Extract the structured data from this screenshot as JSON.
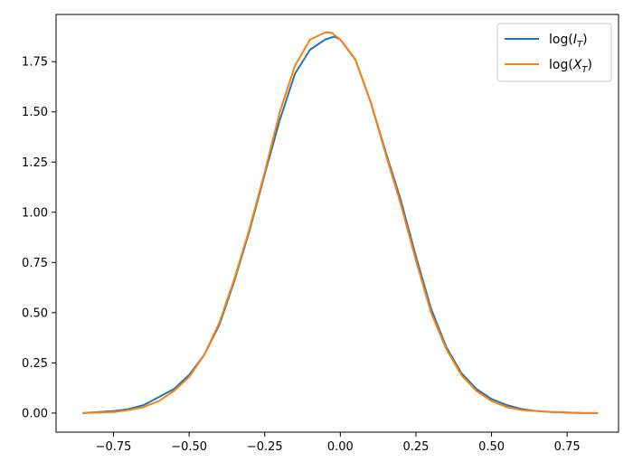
{
  "chart_data": {
    "type": "line",
    "title": "",
    "xlabel": "",
    "ylabel": "",
    "xlim": [
      -0.94,
      0.92
    ],
    "ylim": [
      -0.095,
      1.985
    ],
    "xticks": [
      -0.75,
      -0.5,
      -0.25,
      0.0,
      0.25,
      0.5,
      0.75
    ],
    "xtick_labels": [
      "−0.75",
      "−0.50",
      "−0.25",
      "0.00",
      "0.25",
      "0.50",
      "0.75"
    ],
    "yticks": [
      0.0,
      0.25,
      0.5,
      0.75,
      1.0,
      1.25,
      1.5,
      1.75
    ],
    "ytick_labels": [
      "0.00",
      "0.25",
      "0.50",
      "0.75",
      "1.00",
      "1.25",
      "1.50",
      "1.75"
    ],
    "grid": false,
    "legend_position": "top-right",
    "series": [
      {
        "name": "log(I_T)",
        "legend_main": "log(",
        "legend_sub_base": "I",
        "legend_sub": "T",
        "legend_close": ")",
        "color": "#1f77b4",
        "x": [
          -0.85,
          -0.75,
          -0.7,
          -0.65,
          -0.6,
          -0.55,
          -0.5,
          -0.45,
          -0.4,
          -0.35,
          -0.3,
          -0.25,
          -0.2,
          -0.15,
          -0.1,
          -0.05,
          -0.02,
          0.0,
          0.05,
          0.1,
          0.15,
          0.2,
          0.25,
          0.3,
          0.35,
          0.4,
          0.45,
          0.5,
          0.55,
          0.6,
          0.65,
          0.7,
          0.75,
          0.8,
          0.85
        ],
        "y": [
          0.0,
          0.01,
          0.02,
          0.04,
          0.08,
          0.12,
          0.19,
          0.29,
          0.44,
          0.66,
          0.91,
          1.19,
          1.46,
          1.69,
          1.81,
          1.86,
          1.875,
          1.86,
          1.76,
          1.55,
          1.3,
          1.06,
          0.78,
          0.52,
          0.33,
          0.2,
          0.12,
          0.07,
          0.04,
          0.02,
          0.01,
          0.005,
          0.003,
          0.0,
          0.0
        ]
      },
      {
        "name": "log(X_T)",
        "legend_main": "log(",
        "legend_sub_base": "X",
        "legend_sub": "T",
        "legend_close": ")",
        "color": "#ff7f0e",
        "x": [
          -0.85,
          -0.75,
          -0.7,
          -0.65,
          -0.6,
          -0.55,
          -0.5,
          -0.45,
          -0.4,
          -0.35,
          -0.3,
          -0.25,
          -0.2,
          -0.15,
          -0.1,
          -0.05,
          -0.03,
          0.0,
          0.05,
          0.1,
          0.15,
          0.2,
          0.25,
          0.3,
          0.35,
          0.4,
          0.45,
          0.5,
          0.55,
          0.6,
          0.65,
          0.7,
          0.75,
          0.8,
          0.85
        ],
        "y": [
          0.0,
          0.005,
          0.015,
          0.03,
          0.06,
          0.11,
          0.18,
          0.29,
          0.45,
          0.67,
          0.92,
          1.2,
          1.5,
          1.73,
          1.86,
          1.895,
          1.895,
          1.86,
          1.76,
          1.55,
          1.29,
          1.04,
          0.76,
          0.5,
          0.32,
          0.19,
          0.11,
          0.06,
          0.03,
          0.015,
          0.01,
          0.005,
          0.002,
          0.0,
          0.0
        ]
      }
    ]
  }
}
